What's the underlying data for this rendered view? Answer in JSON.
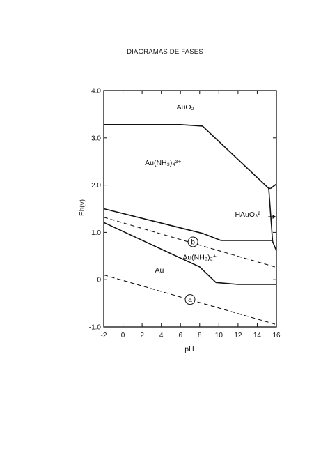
{
  "page": {
    "title": "DIAGRAMAS DE FASES"
  },
  "chart_data": {
    "type": "line",
    "xlabel": "pH",
    "ylabel": "Eh(v)",
    "xlim": [
      -2,
      16
    ],
    "ylim": [
      -1.0,
      4.0
    ],
    "xticks": [
      -2,
      0,
      2,
      4,
      6,
      8,
      10,
      12,
      14,
      16
    ],
    "yticks": [
      -1.0,
      0,
      1.0,
      2.0,
      3.0,
      4.0
    ],
    "xtick_labels": [
      "-2",
      "0",
      "2",
      "4",
      "6",
      "8",
      "10",
      "12",
      "14",
      "16"
    ],
    "ytick_labels": [
      "-1.0",
      "0",
      "1.0",
      "2.0",
      "3.0",
      "4.0"
    ],
    "grid": false,
    "series": [
      {
        "style": "solid",
        "x": [
          -2,
          6,
          8.3,
          15.2,
          15.4
        ],
        "y": [
          3.28,
          3.28,
          3.25,
          1.93,
          1.93
        ]
      },
      {
        "style": "solid",
        "x": [
          15.2,
          15.6
        ],
        "y": [
          1.93,
          0.81
        ]
      },
      {
        "style": "solid",
        "x": [
          15.4,
          16
        ],
        "y": [
          1.93,
          2.02
        ]
      },
      {
        "style": "solid",
        "x": [
          15.6,
          16
        ],
        "y": [
          0.81,
          0.61
        ]
      },
      {
        "style": "solid",
        "x": [
          -2,
          8.3,
          10.2,
          15.6
        ],
        "y": [
          1.5,
          0.98,
          0.83,
          0.83
        ]
      },
      {
        "style": "solid",
        "x": [
          -2,
          8,
          9.7,
          12,
          16
        ],
        "y": [
          1.21,
          0.27,
          -0.06,
          -0.1,
          -0.1
        ]
      },
      {
        "style": "dashed",
        "x": [
          -2,
          16
        ],
        "y": [
          1.32,
          0.26
        ]
      },
      {
        "style": "dashed",
        "x": [
          -2,
          16
        ],
        "y": [
          0.1,
          -0.95
        ]
      }
    ],
    "annotations": [
      {
        "text": "AuO₂",
        "x": 6.5,
        "y": 3.6
      },
      {
        "text": "Au(NH₃)₄³⁺",
        "x": 4.2,
        "y": 2.42
      },
      {
        "text": "HAuO₃²⁻",
        "x": 13.2,
        "y": 1.33
      },
      {
        "text": "Au(NH₃)₂⁺",
        "x": 8.0,
        "y": 0.42
      },
      {
        "text": "Au",
        "x": 3.8,
        "y": 0.15
      },
      {
        "text": "b",
        "x": 7.3,
        "y": 0.8,
        "circled": true
      },
      {
        "text": "a",
        "x": 7.0,
        "y": -0.42,
        "circled": true
      }
    ]
  }
}
